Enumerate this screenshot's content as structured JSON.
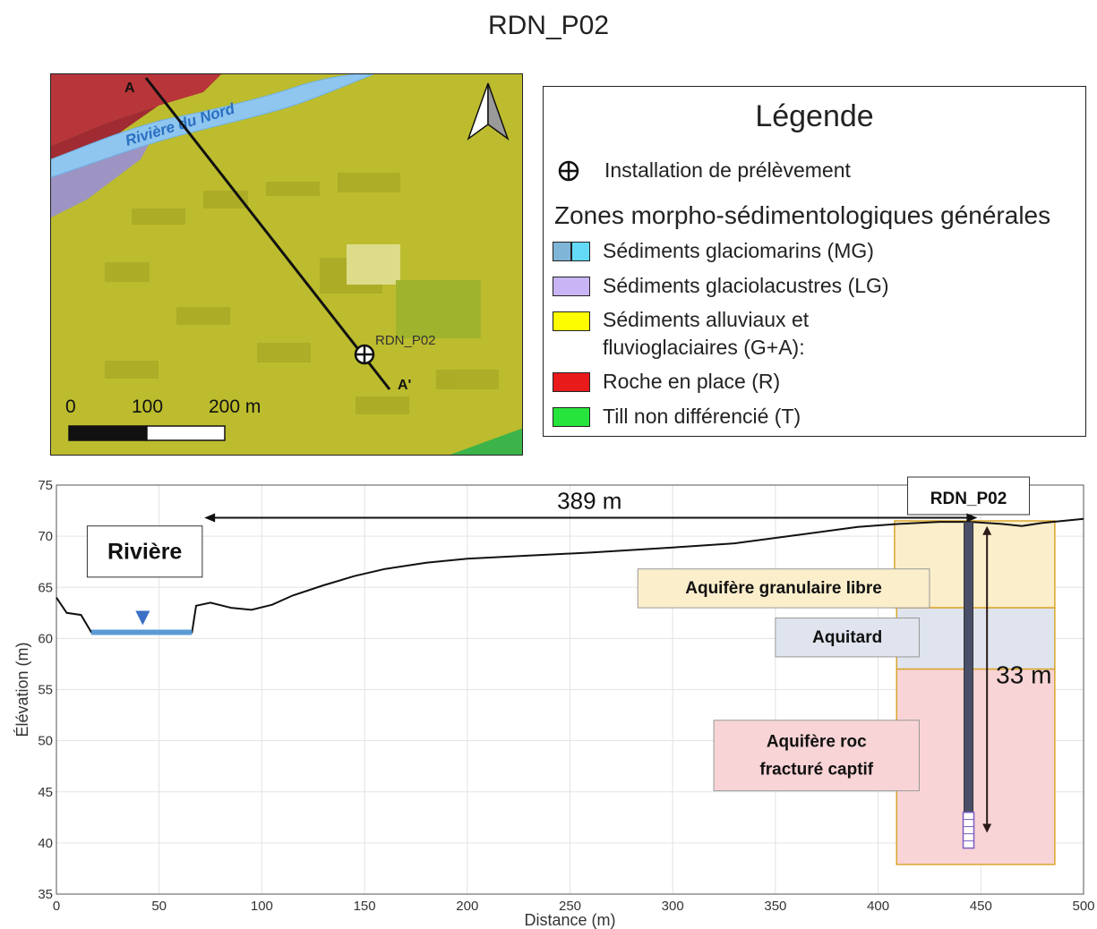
{
  "title": "RDN_P02",
  "map": {
    "section_start": "A",
    "section_end": "A'",
    "river_label": "Rivière du Nord",
    "well_label": "RDN_P02",
    "scale": [
      "0",
      "100",
      "200 m"
    ],
    "north_arrow_icon": "north-arrow-icon",
    "colors": {
      "bedrock": "#c0303a",
      "alluvial": "#c8c832",
      "glaciolacustrine": "#a9a0d6",
      "river": "#8fc6f0",
      "till": "#3cb44a"
    }
  },
  "legend": {
    "title": "Légende",
    "well_entry": "Installation de prélèvement",
    "zones_title": "Zones morpho-sédimentologiques générales",
    "items": [
      {
        "label": "Sédiments glaciomarins (MG)",
        "color": "#7fd3f5"
      },
      {
        "label": "Sédiments glaciolacustres (LG)",
        "color": "#c9b4f5"
      },
      {
        "label": "Sédiments alluviaux et",
        "label2": "fluvioglaciaires (G+A):",
        "color": "#fdfd00"
      },
      {
        "label": "Roche en place (R)",
        "color": "#e81a1a"
      },
      {
        "label": "Till non différencié (T)",
        "color": "#27e43c"
      }
    ]
  },
  "chart_data": {
    "type": "line",
    "xlabel": "Distance (m)",
    "ylabel": "Élévation (m)",
    "xlim": [
      0,
      500
    ],
    "ylim": [
      35,
      75
    ],
    "xticks": [
      0,
      50,
      100,
      150,
      200,
      250,
      300,
      350,
      400,
      450,
      500
    ],
    "yticks": [
      35,
      40,
      45,
      50,
      55,
      60,
      65,
      70,
      75
    ],
    "ground_profile": {
      "x": [
        0,
        5,
        12,
        17,
        66,
        68,
        75,
        85,
        95,
        105,
        115,
        130,
        145,
        160,
        180,
        200,
        230,
        260,
        300,
        330,
        360,
        390,
        410,
        430,
        445,
        460,
        470,
        480,
        500
      ],
      "y": [
        64,
        62.5,
        62.3,
        60.6,
        60.6,
        63.2,
        63.5,
        63,
        62.8,
        63.3,
        64.2,
        65.2,
        66.1,
        66.8,
        67.4,
        67.8,
        68.1,
        68.4,
        68.9,
        69.3,
        70.1,
        70.9,
        71.2,
        71.4,
        71.4,
        71.2,
        71.0,
        71.3,
        71.7
      ]
    },
    "river": {
      "x_start": 17,
      "x_end": 66,
      "level": 60.6
    },
    "units": [
      {
        "name": "Aquifère granulaire libre",
        "x": [
          408,
          486
        ],
        "top": 71.5,
        "bottom": 63.0,
        "fill": "#fbeecb",
        "stroke": "#d9a52b"
      },
      {
        "name": "Aquitard",
        "x": [
          409,
          486
        ],
        "top": 63.0,
        "bottom": 57.0,
        "fill": "#dfe4ee",
        "stroke": "#d9a52b"
      },
      {
        "name": "Aquifère roc",
        "name2": "fracturé captif",
        "x": [
          409,
          486
        ],
        "top": 57.0,
        "bottom": 37.9,
        "fill": "#f8d4d6",
        "stroke": "#d9a52b"
      }
    ],
    "well": {
      "name": "RDN_P02",
      "x": 444,
      "top": 71.4,
      "bottom": 39.5,
      "screen_top": 43.0
    },
    "distance_annotation": {
      "label": "389 m",
      "x_from": 447,
      "x_to": 72,
      "y": 71.8
    },
    "depth_annotation": {
      "label": "33 m",
      "x": 453,
      "from": 71.0,
      "to": 41.0
    },
    "river_label": "Rivière"
  }
}
